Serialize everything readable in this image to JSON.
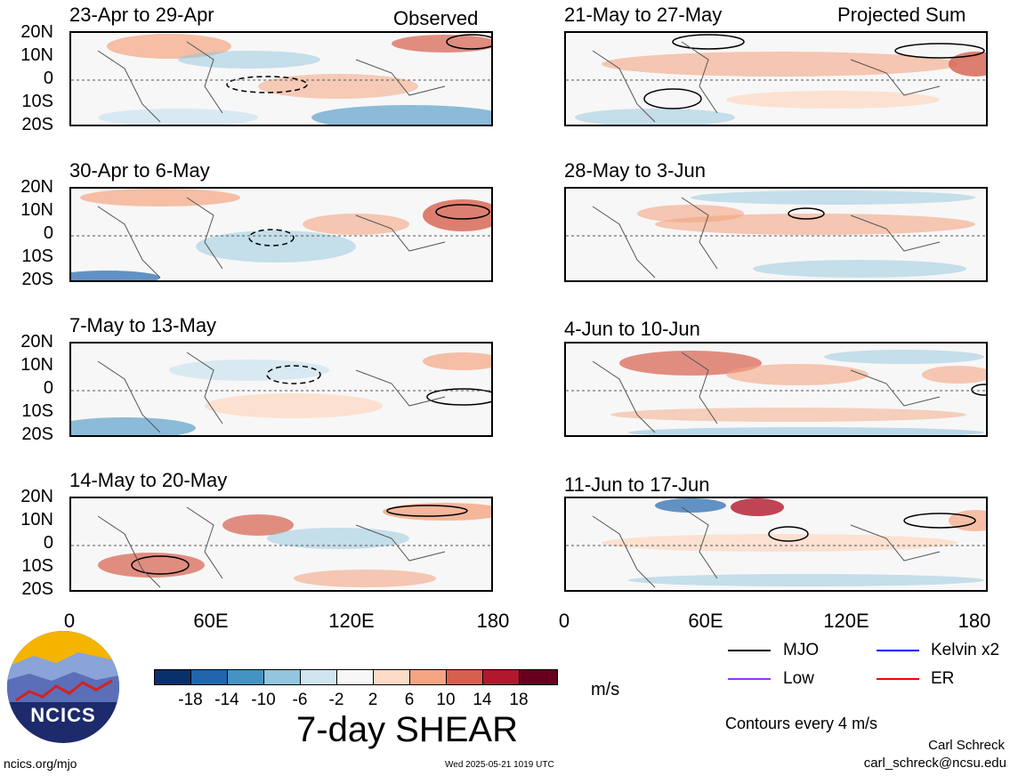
{
  "header": {
    "left_label": "Observed",
    "right_label": "Projected Sum"
  },
  "panels_left": [
    {
      "title": "23-Apr to 29-Apr"
    },
    {
      "title": "30-Apr to 6-May"
    },
    {
      "title": "7-May to 13-May"
    },
    {
      "title": "14-May to 20-May"
    }
  ],
  "panels_right": [
    {
      "title": "21-May to 27-May"
    },
    {
      "title": "28-May to 3-Jun"
    },
    {
      "title": "4-Jun to 10-Jun"
    },
    {
      "title": "11-Jun to 17-Jun"
    }
  ],
  "lat_labels": [
    "20N",
    "10N",
    "0",
    "10S",
    "20S"
  ],
  "lon_labels": [
    "0",
    "60E",
    "120E",
    "180"
  ],
  "colorbar": {
    "colors": [
      "#08306b",
      "#2166ac",
      "#4393c3",
      "#92c5de",
      "#d1e5f0",
      "#f7f7f7",
      "#fddbc7",
      "#f4a582",
      "#d6604d",
      "#b2182b",
      "#67001f"
    ],
    "ticks": [
      "-18",
      "-14",
      "-10",
      "-6",
      "-2",
      "2",
      "6",
      "10",
      "14",
      "18"
    ],
    "unit": "m/s"
  },
  "main_title": "7-day SHEAR",
  "legend": {
    "items": [
      {
        "label": "MJO",
        "color": "#000000"
      },
      {
        "label": "Kelvin x2",
        "color": "#0000ff"
      },
      {
        "label": "Low",
        "color": "#9933ff"
      },
      {
        "label": "ER",
        "color": "#ff0000"
      }
    ],
    "note": "Contours every 4 m/s"
  },
  "logo": {
    "text": "NCICS"
  },
  "footer": {
    "url": "ncics.org/mjo",
    "timestamp": "Wed 2025-05-21 1019 UTC",
    "author": "Carl Schreck",
    "email": "carl_schreck@ncsu.edu"
  }
}
